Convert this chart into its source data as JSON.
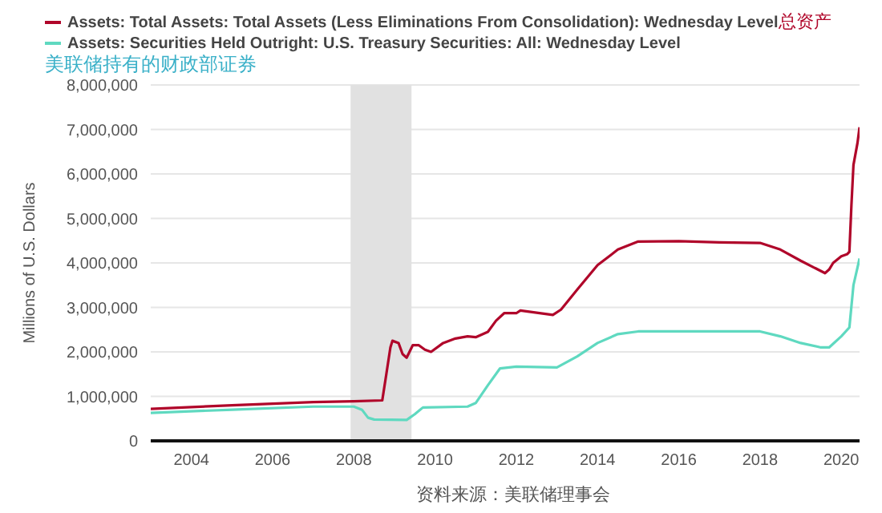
{
  "chart_data": {
    "type": "line",
    "ylabel": "Millions of U.S. Dollars",
    "series": [
      {
        "name": "Assets: Total Assets: Total Assets (Less Eliminations From Consolidation): Wednesday Level",
        "color": "#b0062a",
        "x": [
          2003.0,
          2005.0,
          2007.0,
          2008.0,
          2008.7,
          2008.8,
          2008.9,
          2008.95,
          2009.1,
          2009.2,
          2009.3,
          2009.45,
          2009.6,
          2009.75,
          2009.9,
          2010.2,
          2010.5,
          2010.8,
          2011.0,
          2011.3,
          2011.5,
          2011.7,
          2012.0,
          2012.1,
          2012.5,
          2012.9,
          2013.1,
          2013.5,
          2014.0,
          2014.5,
          2015.0,
          2016.0,
          2017.0,
          2018.0,
          2018.5,
          2019.0,
          2019.6,
          2019.7,
          2019.8,
          2020.0,
          2020.15,
          2020.2,
          2020.25,
          2020.3,
          2020.4,
          2020.45
        ],
        "values": [
          720000,
          800000,
          870000,
          890000,
          910000,
          1500000,
          2100000,
          2250000,
          2200000,
          1950000,
          1870000,
          2150000,
          2150000,
          2050000,
          2000000,
          2200000,
          2300000,
          2350000,
          2330000,
          2450000,
          2700000,
          2870000,
          2870000,
          2930000,
          2880000,
          2830000,
          2950000,
          3400000,
          3950000,
          4300000,
          4480000,
          4490000,
          4460000,
          4450000,
          4300000,
          4050000,
          3770000,
          3850000,
          4000000,
          4150000,
          4200000,
          4250000,
          5300000,
          6200000,
          6700000,
          7050000
        ]
      },
      {
        "name": "Assets: Securities Held Outright: U.S. Treasury Securities: All: Wednesday Level",
        "color": "#5fd9c0",
        "x": [
          2003.0,
          2005.0,
          2007.0,
          2008.0,
          2008.2,
          2008.35,
          2008.5,
          2009.3,
          2009.5,
          2009.7,
          2010.8,
          2011.0,
          2011.3,
          2011.6,
          2012.0,
          2013.0,
          2013.5,
          2014.0,
          2014.5,
          2015.0,
          2016.0,
          2017.0,
          2018.0,
          2018.5,
          2019.0,
          2019.5,
          2019.7,
          2020.0,
          2020.2,
          2020.3,
          2020.4,
          2020.45
        ],
        "values": [
          630000,
          700000,
          770000,
          770000,
          700000,
          520000,
          480000,
          470000,
          600000,
          750000,
          770000,
          850000,
          1250000,
          1630000,
          1670000,
          1650000,
          1900000,
          2200000,
          2400000,
          2460000,
          2460000,
          2460000,
          2460000,
          2350000,
          2200000,
          2100000,
          2100000,
          2350000,
          2550000,
          3500000,
          3900000,
          4100000
        ]
      }
    ],
    "annotations": [
      "总资产",
      "美联储持有的财政部证券",
      "资料来源：美联储理事会"
    ],
    "xlim": [
      2003,
      2020.45
    ],
    "xticks": [
      2004,
      2006,
      2008,
      2010,
      2012,
      2014,
      2016,
      2018,
      2020
    ],
    "ylim": [
      0,
      8000000
    ],
    "yticks": [
      0,
      {
        "value": 1000000,
        "label": "1,000,000"
      },
      {
        "value": 2000000,
        "label": "2,000,000"
      },
      {
        "value": 3000000,
        "label": "3,000,000"
      },
      {
        "value": 4000000,
        "label": "4,000,000"
      },
      {
        "value": 5000000,
        "label": "5,000,000"
      },
      {
        "value": 6000000,
        "label": "6,000,000"
      },
      {
        "value": 7000000,
        "label": "7,000,000"
      },
      {
        "value": 8000000,
        "label": "8,000,000"
      }
    ],
    "bands": [
      {
        "axis": "x",
        "from": 2007.92,
        "to": 2009.42,
        "color": "#e1e1e1"
      }
    ],
    "grid": "y",
    "legend": "top",
    "line_style": "solid",
    "marker": "none"
  }
}
